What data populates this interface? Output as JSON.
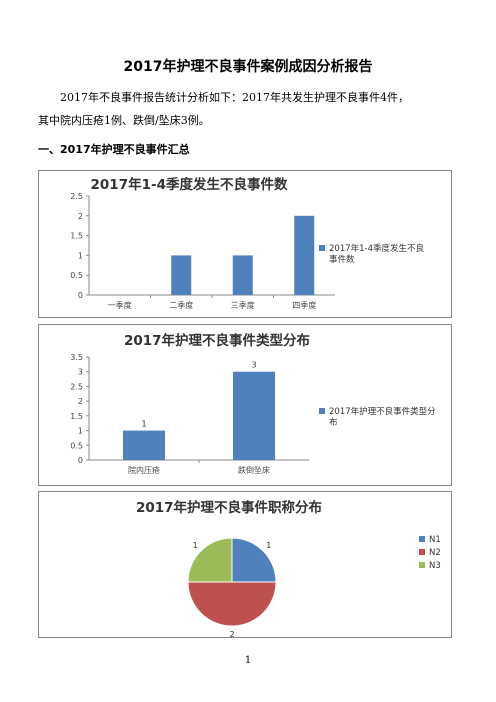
{
  "doc": {
    "title": "2017年护理不良事件案例成因分析报告",
    "para_line1": "2017年不良事件报告统计分析如下：2017年共发生护理不良事件4件，",
    "para_line2": "其中院内压疮1例、跌倒/坠床3例。",
    "heading": "一、2017年护理不良事件汇总",
    "page_number": "1"
  },
  "colors": {
    "blue": "#4f81bd",
    "red": "#c0504d",
    "green": "#9bbb59"
  },
  "chart_data": [
    {
      "type": "bar",
      "title": "2017年1-4季度发生不良事件数",
      "categories": [
        "一季度",
        "二季度",
        "三季度",
        "四季度"
      ],
      "series": [
        {
          "name": "2017年1-4季度发生不良事件数",
          "values": [
            0,
            1,
            1,
            2
          ]
        }
      ],
      "ylim": [
        0,
        2.5
      ],
      "yticks": [
        "0",
        "0.5",
        "1",
        "1.5",
        "2",
        "2.5"
      ],
      "legend": "right",
      "grid": false
    },
    {
      "type": "bar",
      "title": "2017年护理不良事件类型分布",
      "categories": [
        "院内压疮",
        "跌倒坠床"
      ],
      "series": [
        {
          "name": "2017年护理不良事件类型分布",
          "values": [
            1,
            3
          ]
        }
      ],
      "data_labels": [
        "1",
        "3"
      ],
      "ylim": [
        0,
        3.5
      ],
      "yticks": [
        "0",
        "0.5",
        "1",
        "1.5",
        "2",
        "2.5",
        "3",
        "3.5"
      ],
      "legend": "right",
      "grid": false
    },
    {
      "type": "pie",
      "title": "2017年护理不良事件职称分布",
      "labels": [
        "N1",
        "N2",
        "N3"
      ],
      "values": [
        1,
        2,
        1
      ],
      "data_labels": [
        "1",
        "2",
        "1"
      ],
      "legend": "right"
    }
  ]
}
